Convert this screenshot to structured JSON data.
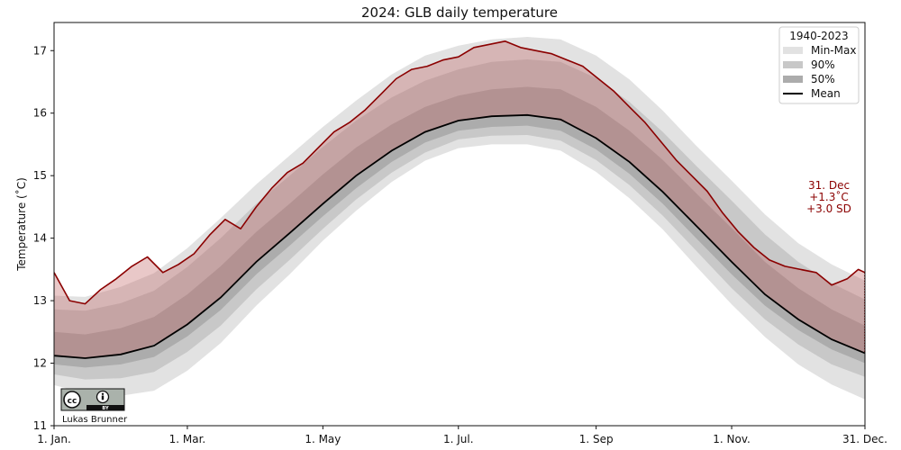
{
  "chart_data": {
    "type": "line",
    "title": "2024: GLB daily temperature",
    "ylabel": "Temperature (˚C)",
    "xlabel": "",
    "ylim": [
      11,
      17.45
    ],
    "xlim": [
      1,
      366
    ],
    "x_ticks": [
      {
        "day": 1,
        "label": "1. Jan."
      },
      {
        "day": 61,
        "label": "1. Mar."
      },
      {
        "day": 122,
        "label": "1. May"
      },
      {
        "day": 183,
        "label": "1. Jul."
      },
      {
        "day": 245,
        "label": "1. Sep"
      },
      {
        "day": 306,
        "label": "1. Nov."
      },
      {
        "day": 366,
        "label": "31. Dec."
      }
    ],
    "y_ticks": [
      11,
      12,
      13,
      14,
      15,
      16,
      17
    ],
    "grid": false,
    "legend": {
      "title": "1940-2023",
      "placement": "top-right",
      "entries": [
        {
          "label": "Min-Max",
          "color": "#e2e2e2",
          "kind": "patch"
        },
        {
          "label": "90%",
          "color": "#c8c8c8",
          "kind": "patch"
        },
        {
          "label": "50%",
          "color": "#acacac",
          "kind": "patch"
        },
        {
          "label": "Mean",
          "color": "#000000",
          "kind": "line"
        }
      ]
    },
    "climatology": {
      "days": [
        1,
        15,
        31,
        46,
        61,
        76,
        92,
        107,
        122,
        137,
        153,
        168,
        183,
        198,
        214,
        229,
        245,
        260,
        275,
        290,
        306,
        321,
        336,
        351,
        366
      ],
      "mean": [
        12.12,
        12.08,
        12.14,
        12.28,
        12.62,
        13.05,
        13.62,
        14.08,
        14.55,
        15.0,
        15.4,
        15.7,
        15.88,
        15.95,
        15.97,
        15.9,
        15.6,
        15.22,
        14.74,
        14.2,
        13.62,
        13.1,
        12.7,
        12.38,
        12.16
      ],
      "p50_low": [
        11.98,
        11.93,
        11.98,
        12.1,
        12.43,
        12.85,
        13.42,
        13.88,
        14.35,
        14.8,
        15.22,
        15.53,
        15.72,
        15.78,
        15.8,
        15.72,
        15.42,
        15.03,
        14.55,
        14.0,
        13.42,
        12.92,
        12.53,
        12.22,
        12.0
      ],
      "p50_high": [
        12.5,
        12.46,
        12.56,
        12.74,
        13.1,
        13.55,
        14.1,
        14.55,
        15.02,
        15.45,
        15.82,
        16.1,
        16.28,
        16.38,
        16.42,
        16.38,
        16.1,
        15.72,
        15.25,
        14.72,
        14.16,
        13.62,
        13.2,
        12.86,
        12.6
      ],
      "p90_low": [
        11.82,
        11.74,
        11.76,
        11.86,
        12.18,
        12.6,
        13.18,
        13.65,
        14.15,
        14.62,
        15.05,
        15.37,
        15.58,
        15.64,
        15.65,
        15.56,
        15.25,
        14.85,
        14.36,
        13.8,
        13.2,
        12.7,
        12.3,
        11.98,
        11.78
      ],
      "p90_high": [
        12.86,
        12.84,
        12.96,
        13.16,
        13.54,
        14.0,
        14.55,
        15.0,
        15.46,
        15.88,
        16.25,
        16.52,
        16.7,
        16.82,
        16.86,
        16.82,
        16.56,
        16.18,
        15.7,
        15.16,
        14.6,
        14.06,
        13.62,
        13.28,
        13.02
      ],
      "min": [
        11.65,
        11.52,
        11.48,
        11.56,
        11.88,
        12.32,
        12.92,
        13.42,
        13.96,
        14.44,
        14.9,
        15.24,
        15.44,
        15.5,
        15.5,
        15.4,
        15.06,
        14.64,
        14.14,
        13.55,
        12.94,
        12.42,
        11.98,
        11.66,
        11.42
      ],
      "max": [
        13.08,
        13.06,
        13.22,
        13.44,
        13.84,
        14.32,
        14.86,
        15.32,
        15.78,
        16.2,
        16.62,
        16.92,
        17.08,
        17.18,
        17.22,
        17.18,
        16.92,
        16.54,
        16.04,
        15.48,
        14.92,
        14.38,
        13.92,
        13.58,
        13.32
      ]
    },
    "series": [
      {
        "name": "",
        "color": "#8b0000",
        "x": [
          1,
          8,
          15,
          22,
          29,
          36,
          43,
          50,
          57,
          64,
          71,
          78,
          85,
          92,
          99,
          106,
          113,
          120,
          127,
          134,
          141,
          148,
          155,
          162,
          169,
          176,
          183,
          190,
          197,
          204,
          211,
          218,
          225,
          232,
          239,
          246,
          253,
          260,
          267,
          274,
          281,
          288,
          295,
          302,
          309,
          316,
          323,
          330,
          337,
          344,
          351,
          358,
          363,
          366
        ],
        "y": [
          13.45,
          13.0,
          12.95,
          13.18,
          13.35,
          13.55,
          13.7,
          13.45,
          13.58,
          13.75,
          14.05,
          14.3,
          14.15,
          14.5,
          14.8,
          15.05,
          15.2,
          15.45,
          15.7,
          15.85,
          16.05,
          16.3,
          16.55,
          16.7,
          16.75,
          16.85,
          16.9,
          17.05,
          17.1,
          17.15,
          17.05,
          17.0,
          16.95,
          16.85,
          16.75,
          16.55,
          16.35,
          16.1,
          15.85,
          15.55,
          15.25,
          15.0,
          14.75,
          14.4,
          14.1,
          13.85,
          13.65,
          13.55,
          13.5,
          13.45,
          13.25,
          13.35,
          13.5,
          13.45
        ]
      }
    ],
    "last_day": {
      "date": "31. Dec",
      "anomaly": "+1.3˚C",
      "sd": "+3.0 SD"
    },
    "colors": {
      "minmax": "#e2e2e2",
      "p90": "#c8c8c8",
      "p50": "#acacac",
      "mean": "#000000",
      "current": "#8b0000",
      "current_fill": "#c06060"
    }
  },
  "credit": {
    "author": "Lukas Brunner",
    "license_badge": "cc-by-icon",
    "badge_text": "BY"
  }
}
